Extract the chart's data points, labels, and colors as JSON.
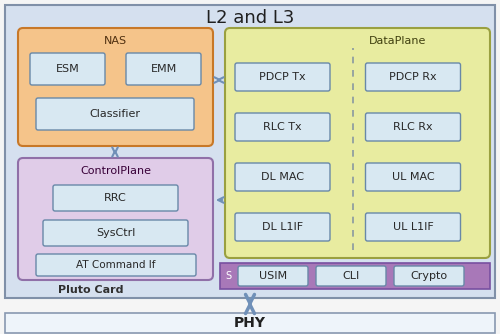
{
  "title": "L2 and L3",
  "outer_bg": "#d5e0ef",
  "outer_border": "#8090a8",
  "nas_bg": "#f5c48a",
  "nas_border": "#c87828",
  "nas_title": "NAS",
  "ctrl_bg": "#e0cce8",
  "ctrl_border": "#9070a8",
  "ctrl_title": "ControlPlane",
  "dp_bg": "#e8eca0",
  "dp_border": "#9aa040",
  "dp_title": "DataPlane",
  "dp_left": [
    "PDCP Tx",
    "RLC Tx",
    "DL MAC",
    "DL L1IF"
  ],
  "dp_right": [
    "PDCP Rx",
    "RLC Rx",
    "UL MAC",
    "UL L1IF"
  ],
  "bar_bg": "#a878b8",
  "bar_border": "#7850a0",
  "bar_label": "S",
  "bottom_boxes": [
    "USIM",
    "CLI",
    "Crypto"
  ],
  "pluto_label": "Pluto Card",
  "phy_label": "PHY",
  "box_bg": "#d8e8f2",
  "box_border": "#6888a8",
  "arrow_color": "#7090b8",
  "dash_color": "#8898a0",
  "phy_bg": "#eef4fa",
  "phy_border": "#8898b0"
}
